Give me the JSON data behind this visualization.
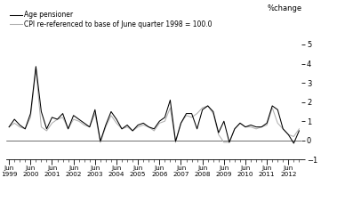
{
  "legend_labels": [
    "Age pensioner",
    "CPI re-referenced to base of June quarter 1998 = 100.0"
  ],
  "legend_colors": [
    "#000000",
    "#b0b0b0"
  ],
  "ylabel": "%change",
  "ylim": [
    -1,
    5
  ],
  "yticks": [
    -1,
    0,
    1,
    2,
    3,
    4,
    5
  ],
  "x_tick_labels": [
    "Jun\n1999",
    "Jun\n2000",
    "Jun\n2001",
    "Jun\n2002",
    "Jun\n2003",
    "Jun\n2004",
    "Jun\n2005",
    "Jun\n2006",
    "Jun\n2007",
    "Jun\n2008",
    "Jun\n2009",
    "Jun\n2010",
    "Jun\n2011",
    "Jun\n2012"
  ],
  "age_pensioner": [
    0.7,
    1.1,
    0.8,
    0.6,
    1.4,
    3.85,
    1.5,
    0.6,
    1.2,
    1.1,
    1.4,
    0.6,
    1.3,
    1.1,
    0.9,
    0.7,
    1.6,
    -0.05,
    0.8,
    1.5,
    1.1,
    0.6,
    0.8,
    0.5,
    0.8,
    0.9,
    0.7,
    0.6,
    1.0,
    1.2,
    2.1,
    -0.05,
    0.9,
    1.4,
    1.4,
    0.6,
    1.6,
    1.8,
    1.5,
    0.4,
    1.0,
    -0.1,
    0.6,
    0.9,
    0.7,
    0.8,
    0.7,
    0.7,
    0.9,
    1.8,
    1.6,
    0.6,
    0.3,
    -0.15,
    0.5
  ],
  "cpi": [
    0.7,
    0.9,
    0.7,
    0.6,
    1.2,
    3.7,
    0.7,
    0.5,
    0.9,
    1.1,
    1.2,
    0.6,
    1.1,
    1.0,
    0.8,
    0.7,
    1.4,
    -0.1,
    0.7,
    1.3,
    0.9,
    0.6,
    0.7,
    0.5,
    0.7,
    0.8,
    0.7,
    0.5,
    0.9,
    1.0,
    1.7,
    -0.1,
    0.9,
    1.3,
    1.2,
    1.4,
    1.7,
    1.8,
    1.4,
    0.3,
    -0.1,
    -0.1,
    0.6,
    0.9,
    0.7,
    0.7,
    0.6,
    0.7,
    0.8,
    1.7,
    0.9,
    0.6,
    0.3,
    0.2,
    0.6
  ],
  "line_color_pensioner": "#000000",
  "line_color_cpi": "#b0b0b0",
  "line_width": 0.75,
  "background_color": "#ffffff",
  "n_quarters": 55
}
